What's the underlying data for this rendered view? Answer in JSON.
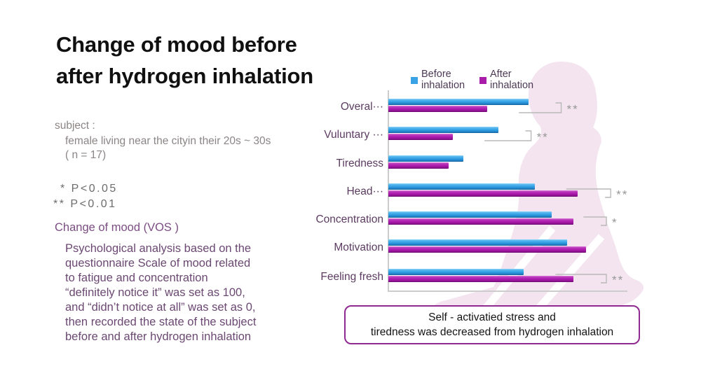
{
  "title": {
    "line1": "Change of mood before",
    "line2": "after hydrogen inhalation"
  },
  "left_panel": {
    "subject_label": "subject :",
    "subject_detail": "female living near the cityin their 20s ~ 30s",
    "subject_n": "( n = 17)",
    "p_notes": [
      "* P<0.05",
      "** P<0.01"
    ],
    "section_label": "Change of mood (VOS )",
    "description_lines": [
      "Psychological analysis based on the",
      "questionnaire Scale of mood related",
      "to fatigue and concentration",
      "“definitely notice it” was set as 100,",
      "and “didn’t notice at all” was set as 0,",
      "then recorded the state of the subject",
      "before and after hydrogen inhalation"
    ]
  },
  "chart_data": {
    "type": "bar",
    "orientation": "horizontal",
    "categories": [
      "Overal···",
      "Vuluntary ···",
      "Tiredness",
      "Head···",
      "Concentration",
      "Motivation",
      "Feeling fresh"
    ],
    "series": [
      {
        "name": "Before inhalation",
        "color": "#3aa3e6",
        "values": [
          65,
          51,
          35,
          68,
          76,
          83,
          63
        ]
      },
      {
        "name": "After inhalation",
        "color": "#a91caa",
        "values": [
          46,
          30,
          28,
          88,
          86,
          92,
          86
        ]
      }
    ],
    "significance": [
      "**",
      "**",
      "",
      "**",
      "*",
      "",
      "**"
    ],
    "xlim": [
      0,
      100
    ],
    "grid": false,
    "legend_position": "top",
    "legend": [
      {
        "line1": "Before",
        "line2": "inhalation"
      },
      {
        "line1": "After",
        "line2": "inhalation"
      }
    ]
  },
  "callout": {
    "line1": "Self - activatied stress and",
    "line2": "tiredness was decreased from hydrogen inhalation",
    "border_color": "#8e2a92"
  },
  "colors": {
    "before_bar": "#3aa3e6",
    "after_bar": "#a91caa",
    "silhouette": "#f3e4ef",
    "significance_marks": "#989898",
    "axis": "#cccccc",
    "category_text": "#5c3b61",
    "note_text": "#6c6c6c",
    "body_text": "#6b4872"
  }
}
